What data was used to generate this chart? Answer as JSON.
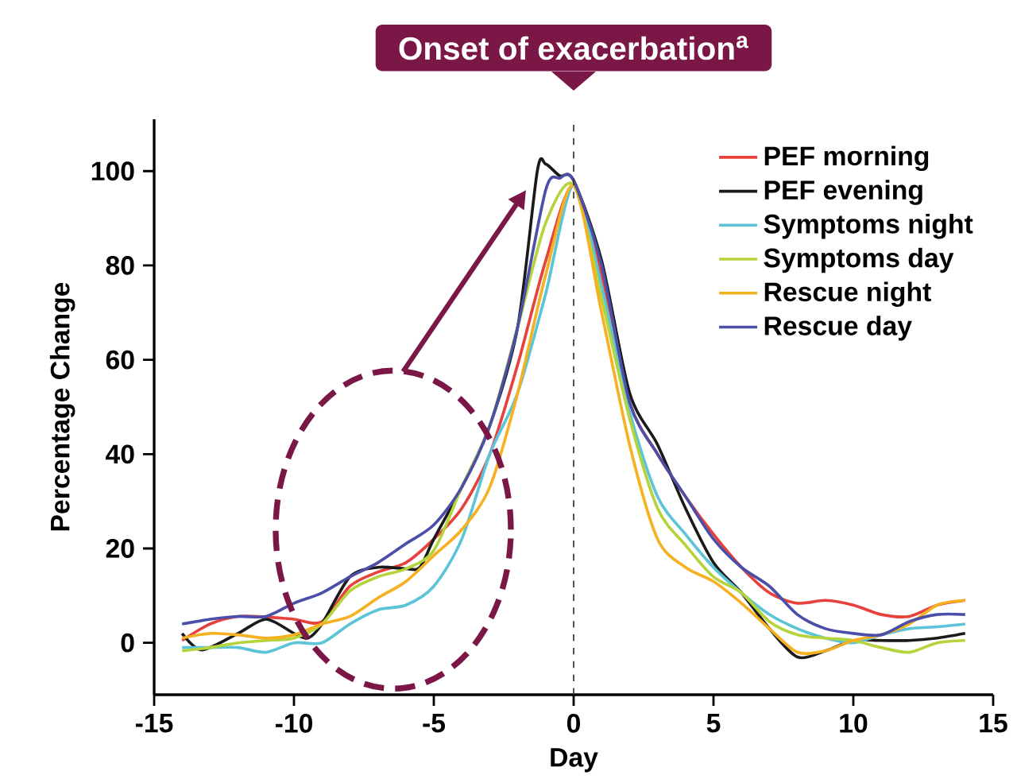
{
  "chart_data": {
    "type": "line",
    "xlabel": "Day",
    "ylabel": "Percentage Change",
    "xlim": [
      -15,
      15
    ],
    "ylim": [
      -11,
      111
    ],
    "xticks": [
      -15,
      -10,
      -5,
      0,
      5,
      10,
      15
    ],
    "yticks": [
      0,
      20,
      40,
      60,
      80,
      100
    ],
    "legend": "top right",
    "line_style": "solid",
    "x": [
      -14,
      -13,
      -12,
      -11,
      -10,
      -9,
      -8,
      -7,
      -6,
      -5,
      -4,
      -3,
      -2,
      -1,
      0,
      1,
      2,
      3,
      4,
      5,
      6,
      7,
      8,
      9,
      10,
      11,
      12,
      13,
      14
    ],
    "ref_lines": [
      {
        "axis": "x",
        "value": 0,
        "label": "Onset of exacerbation$^{a}$",
        "line_style": "dashed",
        "color": "#333333"
      }
    ],
    "series": [
      {
        "name": "PEF morning",
        "color": "#e8413c",
        "values": [
          0.5,
          4,
          5.6,
          5.5,
          5,
          4.5,
          12,
          15,
          17,
          22,
          28.5,
          40,
          59,
          81,
          97,
          78,
          51,
          40,
          31,
          23,
          16,
          10.6,
          8.4,
          9,
          8,
          6,
          5.6,
          8,
          9
        ]
      },
      {
        "name": "PEF evening",
        "color": "#1a1a1a",
        "x": [
          -14,
          -13.3,
          -12,
          -11,
          -10,
          -9.5,
          -9,
          -8,
          -7,
          -6,
          -5.5,
          -5,
          -4,
          -3,
          -2,
          -1.3,
          -1,
          -0.5,
          0,
          1,
          2,
          3,
          4,
          5,
          6,
          7,
          8,
          9,
          10,
          11,
          12,
          13,
          14
        ],
        "values": [
          2,
          -1.5,
          2,
          5,
          2,
          1,
          4,
          14,
          16,
          15.7,
          16,
          22,
          33,
          46,
          67,
          100,
          101.5,
          99,
          98,
          81,
          53,
          42,
          28.5,
          17,
          10.6,
          3,
          -3,
          -1.7,
          0.5,
          0.5,
          0.5,
          1,
          2
        ]
      },
      {
        "name": "Symptoms night",
        "color": "#5bc4d6",
        "values": [
          -1,
          -1,
          -1,
          -2,
          0,
          0,
          4,
          7,
          8,
          12,
          22,
          40,
          53,
          74,
          97,
          75.6,
          49,
          31,
          23,
          16,
          10.6,
          6,
          3,
          1,
          0,
          1.7,
          3,
          3.4,
          4
        ]
      },
      {
        "name": "Symptoms day",
        "color": "#b5d33a",
        "values": [
          -1.7,
          -1,
          0,
          0.5,
          1,
          4,
          11,
          14,
          15.7,
          19.6,
          33,
          46,
          67,
          89,
          97,
          73,
          47.6,
          28.5,
          20.7,
          14,
          10.6,
          4.5,
          1.7,
          1,
          0.5,
          -1,
          -2,
          0,
          0.5
        ]
      },
      {
        "name": "Rescue night",
        "color": "#f5b122",
        "values": [
          1,
          2,
          1.7,
          1,
          1.7,
          4,
          5.6,
          9.5,
          13,
          18.5,
          24,
          33,
          53,
          78,
          97,
          70,
          42,
          22,
          16,
          13,
          8.4,
          3,
          -2,
          -1.7,
          0.5,
          1.7,
          4,
          8,
          9
        ]
      },
      {
        "name": "Rescue day",
        "color": "#4b4fa8",
        "x": [
          -14,
          -13,
          -12,
          -11,
          -10,
          -9,
          -8,
          -7,
          -6,
          -5,
          -4,
          -3,
          -2,
          -1,
          -0.5,
          0,
          1,
          2,
          3,
          4,
          5,
          6,
          7,
          8,
          9,
          10,
          11,
          12,
          13,
          14
        ],
        "values": [
          4,
          5,
          5.6,
          5.6,
          8.4,
          10.6,
          14,
          17,
          21,
          25,
          33,
          46,
          67,
          96,
          98.5,
          98,
          80,
          51,
          40,
          31,
          22,
          16,
          12,
          6,
          3,
          2,
          1.7,
          4.5,
          6,
          6
        ]
      }
    ]
  }
}
